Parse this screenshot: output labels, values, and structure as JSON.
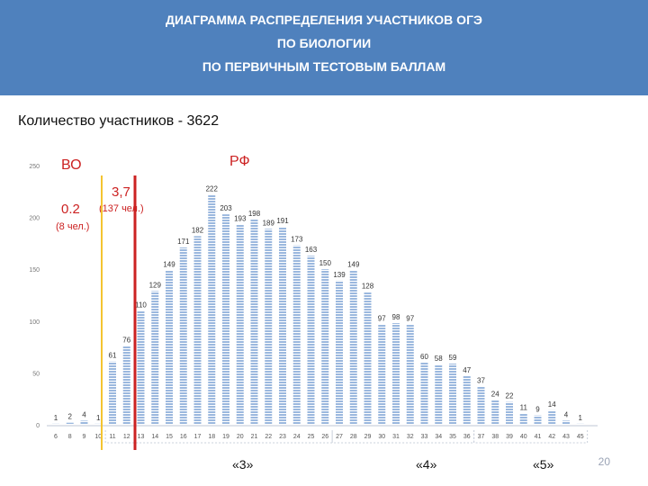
{
  "header": {
    "line1": "ДИАГРАММА РАСПРЕДЕЛЕНИЯ УЧАСТНИКОВ ОГЭ",
    "line2": "ПО БИОЛОГИИ",
    "line3": "ПО ПЕРВИЧНЫМ ТЕСТОВЫМ БАЛЛАМ"
  },
  "subtitle": "Количество участников - 3622",
  "annotations": {
    "vo": "ВО",
    "rf": "РФ",
    "vo_value": "0.2",
    "vo_count": "(8 чел.)",
    "rf_value": "3,7",
    "rf_count": "(137 чел.)"
  },
  "grades": {
    "g3": "«3»",
    "g4": "«4»",
    "g5": "«5»"
  },
  "page_number": "20",
  "colors": {
    "header_bg": "#4f81bd",
    "bar": "#9bb8de",
    "bar_stripe": "#ffffff",
    "vo_line": "#f4c430",
    "rf_line": "#cc2222",
    "annotation_red": "#cc2222"
  },
  "chart_data": {
    "type": "bar",
    "categories": [
      "6",
      "8",
      "9",
      "10",
      "11",
      "12",
      "13",
      "14",
      "15",
      "16",
      "17",
      "18",
      "19",
      "20",
      "21",
      "22",
      "23",
      "24",
      "25",
      "26",
      "27",
      "28",
      "29",
      "30",
      "31",
      "32",
      "33",
      "34",
      "35",
      "36",
      "37",
      "38",
      "39",
      "40",
      "41",
      "42",
      "43",
      "45"
    ],
    "values": [
      1,
      2,
      4,
      1,
      61,
      76,
      110,
      129,
      149,
      171,
      182,
      222,
      203,
      193,
      198,
      189,
      191,
      173,
      163,
      150,
      139,
      149,
      128,
      97,
      98,
      97,
      60,
      58,
      59,
      47,
      37,
      24,
      22,
      11,
      9,
      14,
      4,
      1
    ],
    "data_labels": [
      "1",
      "2",
      "4",
      "1",
      "61",
      "76",
      "110",
      "129",
      "149",
      "171",
      "182",
      "222",
      "203",
      "193",
      "198",
      "189",
      "191",
      "173",
      "163",
      "150",
      "139",
      "149",
      "128",
      "97",
      "98",
      "97",
      "60",
      "58",
      "59",
      "47",
      "37",
      "24",
      "22",
      "11",
      "9",
      "14",
      "4",
      "1"
    ],
    "y_ticks": [
      "0",
      "50",
      "100",
      "150",
      "200",
      "250"
    ],
    "ylim": [
      0,
      250
    ],
    "grid": false,
    "xlabel": "",
    "ylabel": ""
  }
}
